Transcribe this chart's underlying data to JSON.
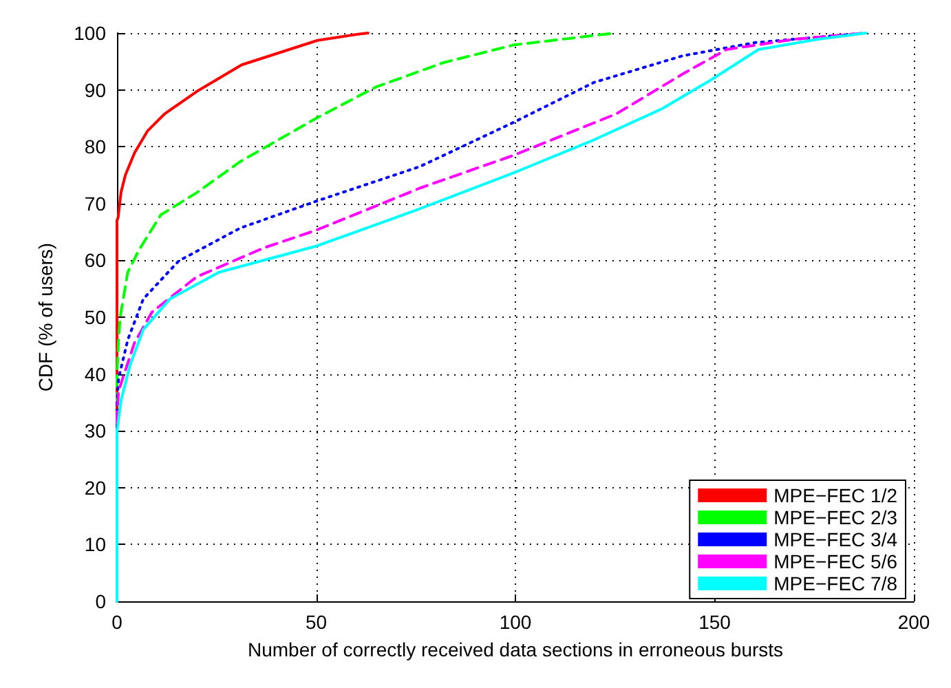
{
  "chart_data": {
    "type": "line",
    "xlabel": "Number of correctly received data sections in erroneous bursts",
    "ylabel": "CDF (% of users)",
    "xlim": [
      0,
      200
    ],
    "xticks": [
      0,
      50,
      100,
      150,
      200
    ],
    "ylim": [
      0,
      100
    ],
    "yticks": [
      0,
      10,
      20,
      30,
      40,
      50,
      60,
      70,
      80,
      90,
      100
    ],
    "grid": true,
    "legend": "bottom right",
    "marker": "none",
    "series": [
      {
        "name": "MPE−FEC 1/2",
        "color": "#ff0000",
        "line_style": "solid",
        "x": [
          0,
          0,
          0.3,
          1,
          2.1,
          4.4,
          7.7,
          12,
          20,
          31.3,
          50.3,
          60.5,
          63
        ],
        "values": [
          0,
          67,
          67.6,
          71.9,
          75,
          78.9,
          82.8,
          85.8,
          89.7,
          94.4,
          98.7,
          99.8,
          100
        ]
      },
      {
        "name": "MPE−FEC 2/3",
        "color": "#00ff00",
        "line_style": "dashed",
        "x": [
          0,
          0,
          0.4,
          0.8,
          2.7,
          5.5,
          11,
          20,
          31,
          50,
          65,
          82,
          99.6,
          125
        ],
        "values": [
          0,
          40,
          46.2,
          50,
          57.9,
          61.8,
          68,
          71.9,
          77.4,
          85,
          90.5,
          94.8,
          97.9,
          100
        ]
      },
      {
        "name": "MPE−FEC 3/4",
        "color": "#0000ff",
        "line_style": "dotted",
        "x": [
          0,
          0,
          0.4,
          2.7,
          6.6,
          15.5,
          31,
          50,
          76,
          99.6,
          119.7,
          142,
          160,
          188
        ],
        "values": [
          0,
          35,
          39.2,
          46,
          53.2,
          59.9,
          65.7,
          70.4,
          76.5,
          84.3,
          91.3,
          96,
          98.3,
          100
        ]
      },
      {
        "name": "MPE−FEC 5/6",
        "color": "#ff00ff",
        "line_style": "dashed",
        "x": [
          0,
          0,
          0.4,
          4.4,
          8.8,
          20,
          36.9,
          50,
          76,
          99.6,
          125.4,
          142,
          153,
          170,
          188
        ],
        "values": [
          0,
          33,
          37,
          45.5,
          50.9,
          57.1,
          62.2,
          65.3,
          72.7,
          78.5,
          85.8,
          92.8,
          97.1,
          98.9,
          100
        ]
      },
      {
        "name": "MPE−FEC 7/8",
        "color": "#00ffff",
        "line_style": "solid",
        "x": [
          0,
          0,
          1,
          3.3,
          6.6,
          13.3,
          25.6,
          50,
          75,
          99.6,
          119.7,
          136.6,
          149,
          161,
          176,
          188
        ],
        "values": [
          0,
          30,
          35.3,
          41.6,
          47.8,
          53.2,
          57.9,
          62.5,
          68.8,
          75.4,
          81.2,
          86.6,
          91.7,
          97.1,
          98.9,
          100
        ]
      }
    ]
  }
}
